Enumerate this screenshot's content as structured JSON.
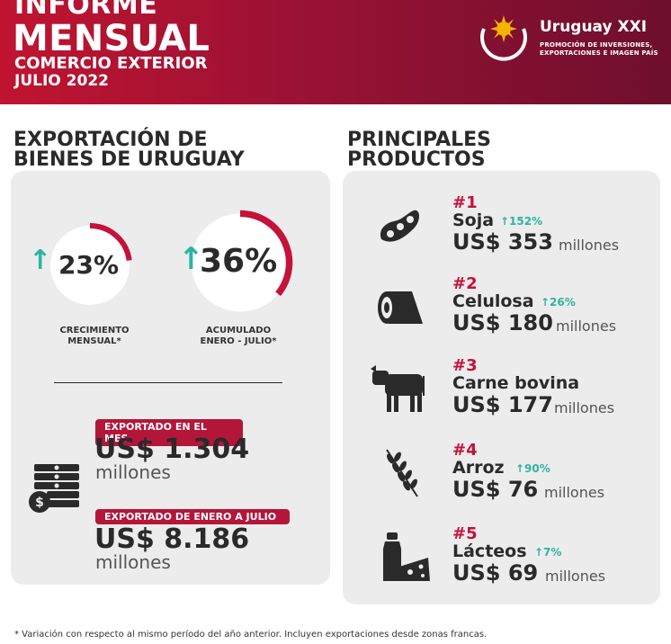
{
  "header": {
    "line1": "INFORME",
    "line2": "MENSUAL",
    "line3": "COMERCIO EXTERIOR",
    "line4": "JULIO 2022",
    "logo_name": "Uruguay XXI",
    "logo_tag1": "PROMOCIÓN DE INVERSIONES,",
    "logo_tag2": "EXPORTACIONES E IMAGEN PAÍS"
  },
  "left": {
    "title_line1": "EXPORTACIÓN DE",
    "title_line2": "BIENES DE URUGUAY",
    "monthly": {
      "value": "23%",
      "fraction": 0.23,
      "label_l1": "CRECIMIENTO",
      "label_l2": "MENSUAL*"
    },
    "cumulative": {
      "value": "36%",
      "fraction": 0.36,
      "label_l1": "ACUMULADO",
      "label_l2": "ENERO - JULIO*"
    },
    "month_pill": "EXPORTADO EN EL MES",
    "month_amount": "US$ 1.304",
    "month_unit": "millones",
    "ytd_pill": "EXPORTADO DE ENERO A JULIO",
    "ytd_amount": "US$ 8.186",
    "ytd_unit": "millones"
  },
  "right": {
    "title_line1": "PRINCIPALES",
    "title_line2": "PRODUCTOS",
    "products": [
      {
        "rank": "#1",
        "name": "Soja",
        "change": "↑152%",
        "value": "US$ 353",
        "unit": "millones",
        "icon": "soybean-icon"
      },
      {
        "rank": "#2",
        "name": "Celulosa",
        "change": "↑26%",
        "value": "US$ 180",
        "unit": "millones",
        "icon": "pulp-roll-icon"
      },
      {
        "rank": "#3",
        "name": "Carne bovina",
        "change": "",
        "value": "US$ 177",
        "unit": "millones",
        "icon": "cow-icon"
      },
      {
        "rank": "#4",
        "name": "Arroz",
        "change": "↑90%",
        "value": "US$ 76",
        "unit": "millones",
        "icon": "rice-icon"
      },
      {
        "rank": "#5",
        "name": "Lácteos",
        "change": "↑7%",
        "value": "US$ 69",
        "unit": "millones",
        "icon": "dairy-icon"
      }
    ]
  },
  "footnote": "* Variación con respecto al mismo período del año anterior. Incluyen exportaciones desde zonas francas.",
  "colors": {
    "brand_red": "#c4123a",
    "up_green": "#2bb59f"
  }
}
